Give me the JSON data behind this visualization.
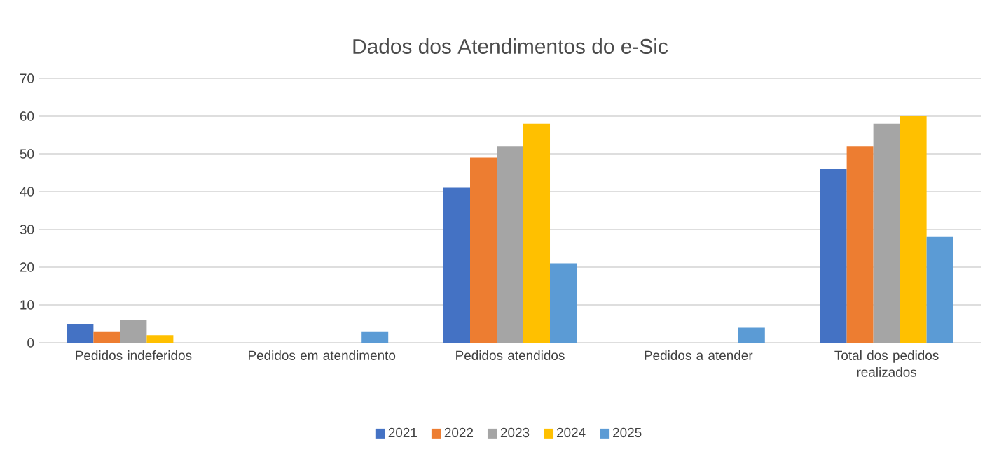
{
  "chart_data": {
    "type": "bar",
    "title": "Dados dos Atendimentos do e-Sic",
    "categories": [
      "Pedidos indeferidos",
      "Pedidos em atendimento",
      "Pedidos atendidos",
      "Pedidos a atender",
      "Total dos pedidos realizados"
    ],
    "series": [
      {
        "name": "2021",
        "color": "#4472c4",
        "values": [
          5,
          0,
          41,
          0,
          46
        ]
      },
      {
        "name": "2022",
        "color": "#ed7d31",
        "values": [
          3,
          0,
          49,
          0,
          52
        ]
      },
      {
        "name": "2023",
        "color": "#a5a5a5",
        "values": [
          6,
          0,
          52,
          0,
          58
        ]
      },
      {
        "name": "2024",
        "color": "#ffc000",
        "values": [
          2,
          0,
          58,
          0,
          60
        ]
      },
      {
        "name": "2025",
        "color": "#5b9bd5",
        "values": [
          0,
          3,
          21,
          4,
          28
        ]
      }
    ],
    "ylim": [
      0,
      70
    ],
    "yticks": [
      0,
      10,
      20,
      30,
      40,
      50,
      60,
      70
    ],
    "grid": "y",
    "legend": "bottom"
  }
}
